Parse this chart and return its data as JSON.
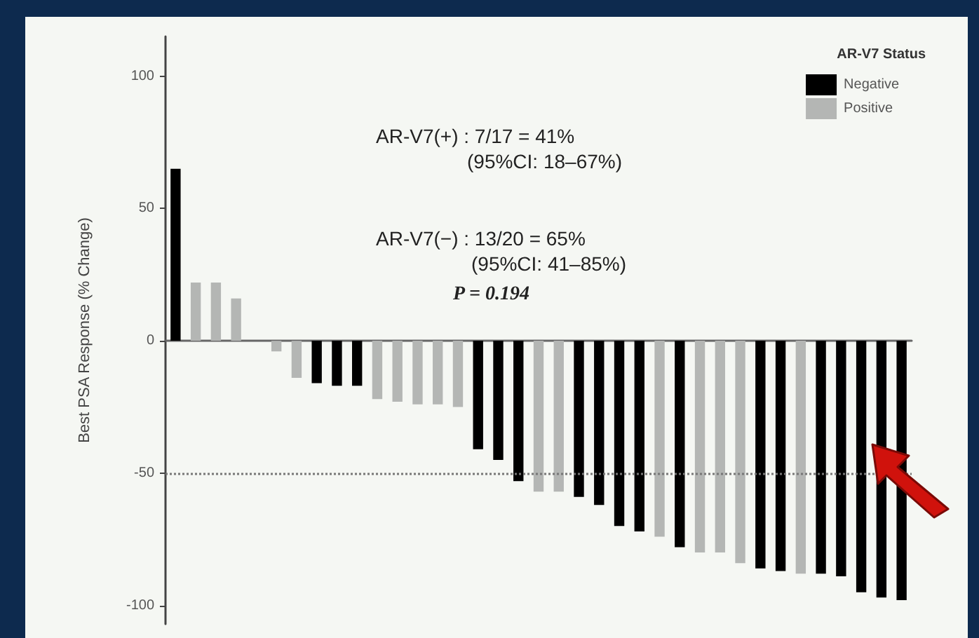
{
  "chart_data": {
    "type": "bar",
    "ylabel": "Best PSA Response (% Change)",
    "legend_title": "AR-V7 Status",
    "categories": [
      null,
      null,
      null,
      null,
      null,
      null,
      null,
      null,
      null,
      null,
      null,
      null,
      null,
      null,
      null,
      null,
      null,
      null,
      null,
      null,
      null,
      null,
      null,
      null,
      null,
      null,
      null,
      null,
      null,
      null,
      null,
      null,
      null,
      null,
      null,
      null,
      null
    ],
    "series": [
      {
        "name": "Negative",
        "color": "#000000",
        "values": [
          65,
          null,
          null,
          null,
          0,
          null,
          null,
          -16,
          -17,
          -17,
          null,
          null,
          null,
          null,
          null,
          -41,
          -45,
          -53,
          null,
          null,
          -59,
          -62,
          -70,
          -72,
          null,
          -78,
          null,
          null,
          null,
          -86,
          -87,
          null,
          -88,
          -89,
          -95,
          -97,
          -98
        ]
      },
      {
        "name": "Positive",
        "color": "#b4b6b4",
        "values": [
          null,
          22,
          22,
          16,
          null,
          -4,
          -14,
          null,
          null,
          null,
          -22,
          -23,
          -24,
          -24,
          -25,
          null,
          null,
          null,
          -57,
          -57,
          null,
          null,
          null,
          null,
          -74,
          null,
          -80,
          -80,
          -84,
          null,
          null,
          -88,
          null,
          null,
          null,
          null,
          null
        ]
      }
    ],
    "ylim": [
      -107,
      115
    ],
    "yticks": [
      -100,
      -50,
      0,
      50,
      100
    ],
    "tick_labels": "y",
    "grid": false,
    "legend": "top right",
    "ref_lines": [
      {
        "axis": "y",
        "value": -50,
        "line_style": "dotted",
        "color": "#777777"
      }
    ],
    "annotations": [
      "AR-V7(+) : 7/17 = 41%",
      "(95%CI: 18–67%)",
      "AR-V7(−) : 13/20 = 65%",
      "(95%CI: 41–85%)",
      "P = 0.194"
    ]
  }
}
